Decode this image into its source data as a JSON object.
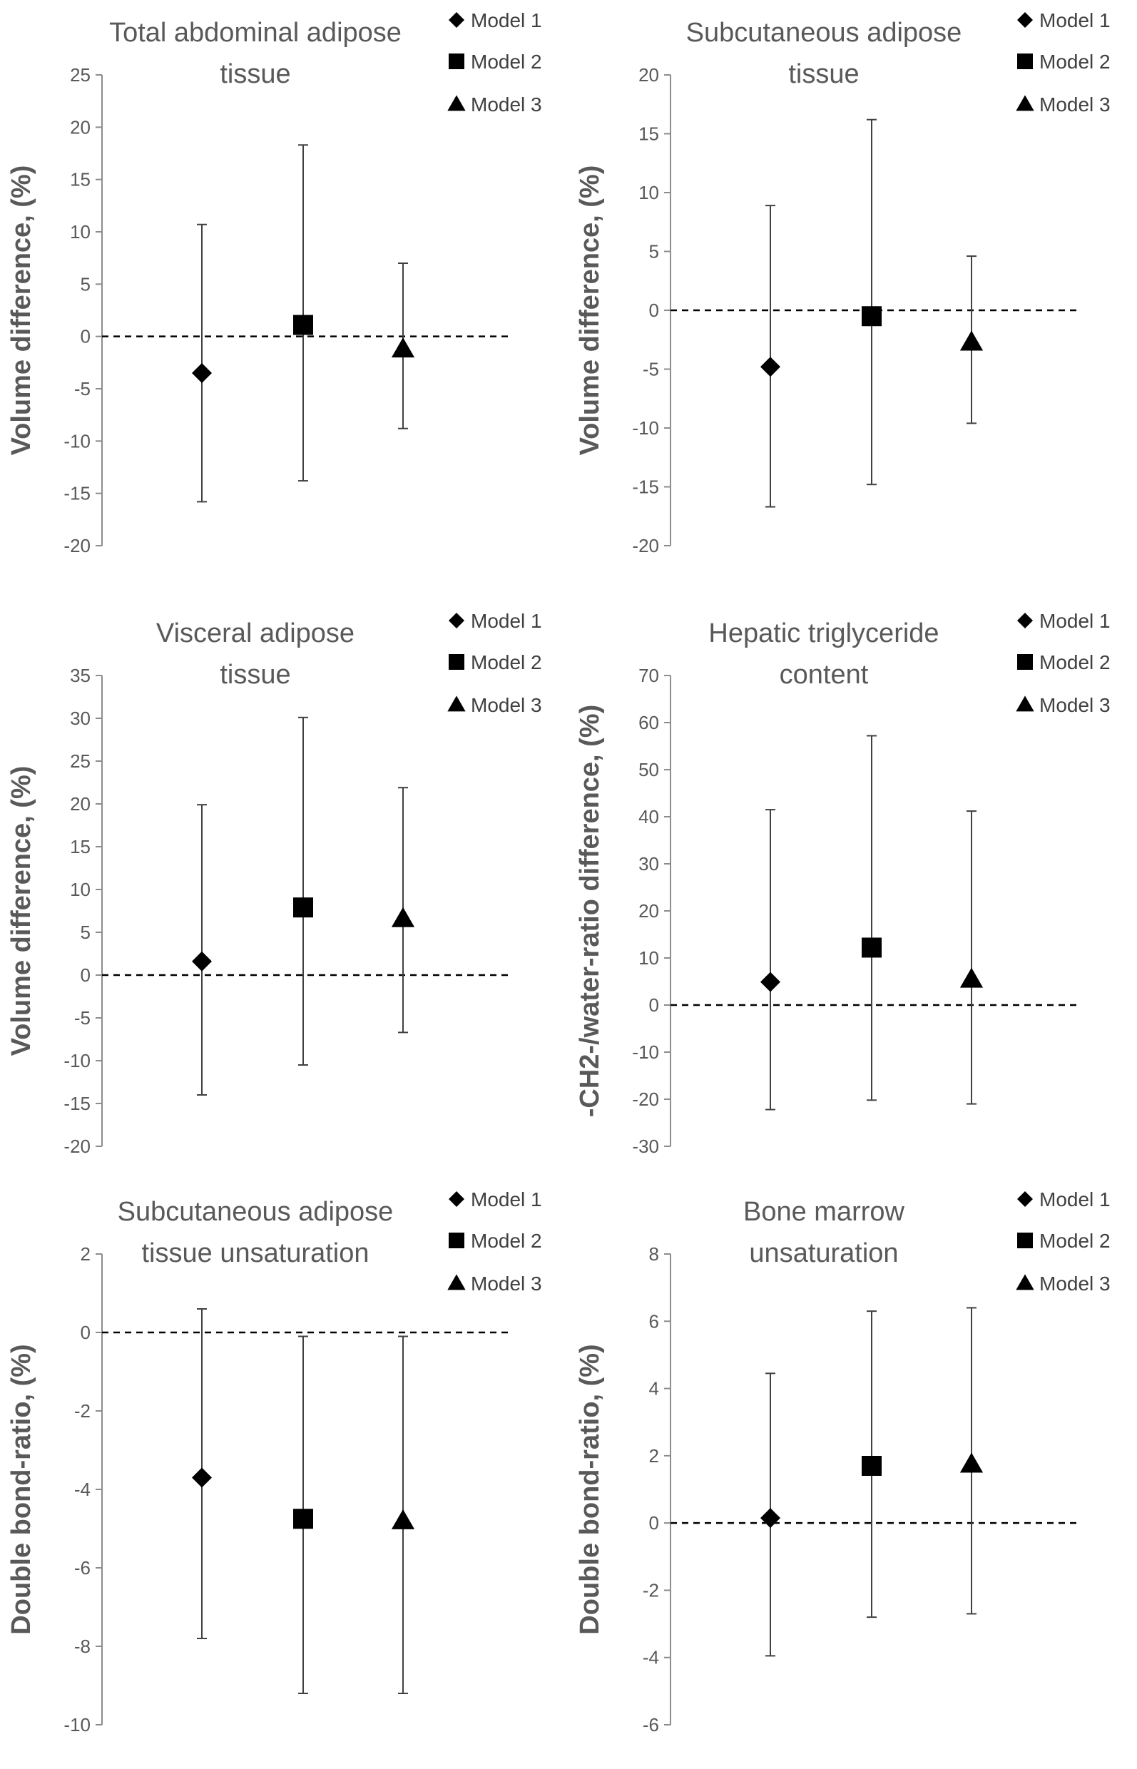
{
  "chart_data": [
    {
      "type": "errorbar",
      "title_lines": [
        "Total abdominal adipose",
        "tissue"
      ],
      "ylabel": "Volume difference, (%)",
      "ylim": [
        -20,
        25
      ],
      "yticks": [
        25,
        20,
        15,
        10,
        5,
        0,
        -5,
        -10,
        -15,
        -20
      ],
      "legend": [
        "Model 1",
        "Model 2",
        "Model 3"
      ],
      "series": [
        {
          "name": "Model 1",
          "marker": "diamond",
          "value": -3.5,
          "lower": -15.8,
          "upper": 10.7
        },
        {
          "name": "Model 2",
          "marker": "square",
          "value": 1.1,
          "lower": -13.8,
          "upper": 18.3
        },
        {
          "name": "Model 3",
          "marker": "triangle",
          "value": -1.2,
          "lower": -8.8,
          "upper": 7.0
        }
      ]
    },
    {
      "type": "errorbar",
      "title_lines": [
        "Subcutaneous adipose",
        "tissue"
      ],
      "ylabel": "Volume difference, (%)",
      "ylim": [
        -20,
        20
      ],
      "yticks": [
        20,
        15,
        10,
        5,
        0,
        -5,
        -10,
        -15,
        -20
      ],
      "legend": [
        "Model 1",
        "Model 2",
        "Model 3"
      ],
      "series": [
        {
          "name": "Model 1",
          "marker": "diamond",
          "value": -4.8,
          "lower": -16.7,
          "upper": 8.9
        },
        {
          "name": "Model 2",
          "marker": "square",
          "value": -0.5,
          "lower": -14.8,
          "upper": 16.2
        },
        {
          "name": "Model 3",
          "marker": "triangle",
          "value": -2.7,
          "lower": -9.6,
          "upper": 4.6
        }
      ]
    },
    {
      "type": "errorbar",
      "title_lines": [
        "Visceral adipose",
        "tissue"
      ],
      "ylabel": "Volume difference, (%)",
      "ylim": [
        -20,
        35
      ],
      "yticks": [
        35,
        30,
        25,
        20,
        15,
        10,
        5,
        0,
        -5,
        -10,
        -15,
        -20
      ],
      "legend": [
        "Model 1",
        "Model 2",
        "Model 3"
      ],
      "series": [
        {
          "name": "Model 1",
          "marker": "diamond",
          "value": 1.6,
          "lower": -14.0,
          "upper": 19.9
        },
        {
          "name": "Model 2",
          "marker": "square",
          "value": 7.9,
          "lower": -10.5,
          "upper": 30.1
        },
        {
          "name": "Model 3",
          "marker": "triangle",
          "value": 6.6,
          "lower": -6.7,
          "upper": 21.9
        }
      ]
    },
    {
      "type": "errorbar",
      "title_lines": [
        "Hepatic triglyceride",
        "content"
      ],
      "ylabel": "-CH2-/water-ratio difference, (%)",
      "ylim": [
        -30,
        70
      ],
      "yticks": [
        70,
        60,
        50,
        40,
        30,
        20,
        10,
        0,
        -10,
        -20,
        -30
      ],
      "legend": [
        "Model 1",
        "Model 2",
        "Model 3"
      ],
      "series": [
        {
          "name": "Model 1",
          "marker": "diamond",
          "value": 4.9,
          "lower": -22.2,
          "upper": 41.5
        },
        {
          "name": "Model 2",
          "marker": "square",
          "value": 12.2,
          "lower": -20.2,
          "upper": 57.2
        },
        {
          "name": "Model 3",
          "marker": "triangle",
          "value": 5.5,
          "lower": -21.0,
          "upper": 41.2
        }
      ]
    },
    {
      "type": "errorbar",
      "title_lines": [
        "Subcutaneous adipose",
        "tissue unsaturation"
      ],
      "ylabel": "Double bond-ratio, (%)",
      "ylim": [
        -10,
        2
      ],
      "yticks": [
        2,
        0,
        -2,
        -4,
        -6,
        -8,
        -10
      ],
      "legend": [
        "Model 1",
        "Model 2",
        "Model 3"
      ],
      "series": [
        {
          "name": "Model 1",
          "marker": "diamond",
          "value": -3.7,
          "lower": -7.8,
          "upper": 0.6
        },
        {
          "name": "Model 2",
          "marker": "square",
          "value": -4.75,
          "lower": -9.2,
          "upper": -0.1
        },
        {
          "name": "Model 3",
          "marker": "triangle",
          "value": -4.8,
          "lower": -9.2,
          "upper": -0.1
        }
      ]
    },
    {
      "type": "errorbar",
      "title_lines": [
        "Bone marrow",
        "unsaturation"
      ],
      "ylabel": "Double bond-ratio, (%)",
      "ylim": [
        -6,
        8
      ],
      "yticks": [
        8,
        6,
        4,
        2,
        0,
        -2,
        -4,
        -6
      ],
      "legend": [
        "Model 1",
        "Model 2",
        "Model 3"
      ],
      "series": [
        {
          "name": "Model 1",
          "marker": "diamond",
          "value": 0.15,
          "lower": -3.95,
          "upper": 4.45
        },
        {
          "name": "Model 2",
          "marker": "square",
          "value": 1.7,
          "lower": -2.8,
          "upper": 6.3
        },
        {
          "name": "Model 3",
          "marker": "triangle",
          "value": 1.75,
          "lower": -2.7,
          "upper": 6.4
        }
      ]
    }
  ]
}
